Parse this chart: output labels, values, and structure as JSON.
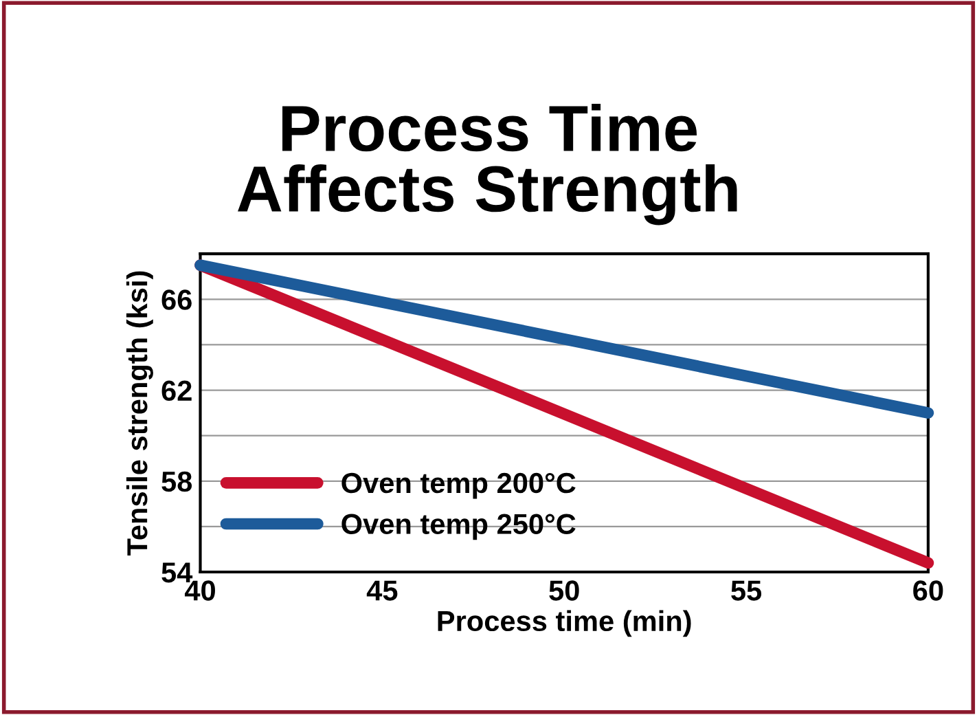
{
  "chart_data": {
    "type": "line",
    "title": "Process Time\nAffects Strength",
    "xlabel": "Process time (min)",
    "ylabel": "Tensile strength (ksi)",
    "x": [
      40,
      60
    ],
    "series": [
      {
        "name": "Oven temp 200°C",
        "color": "#c8102e",
        "values": [
          67.5,
          54.4
        ]
      },
      {
        "name": "Oven temp 250°C",
        "color": "#1d5b9a",
        "values": [
          67.5,
          61.0
        ]
      }
    ],
    "xlim": [
      40,
      60
    ],
    "xticks": [
      40,
      45,
      50,
      55,
      60
    ],
    "ylim": [
      54,
      68
    ],
    "yticks": [
      54,
      {
        "value": 56,
        "label": null
      },
      58,
      {
        "value": 60,
        "label": null
      },
      62,
      {
        "value": 64,
        "label": null
      },
      66,
      {
        "value": 68,
        "label": null
      }
    ],
    "grid": "y",
    "legend": "bottom left",
    "marker": "none",
    "line_style": "solid"
  }
}
